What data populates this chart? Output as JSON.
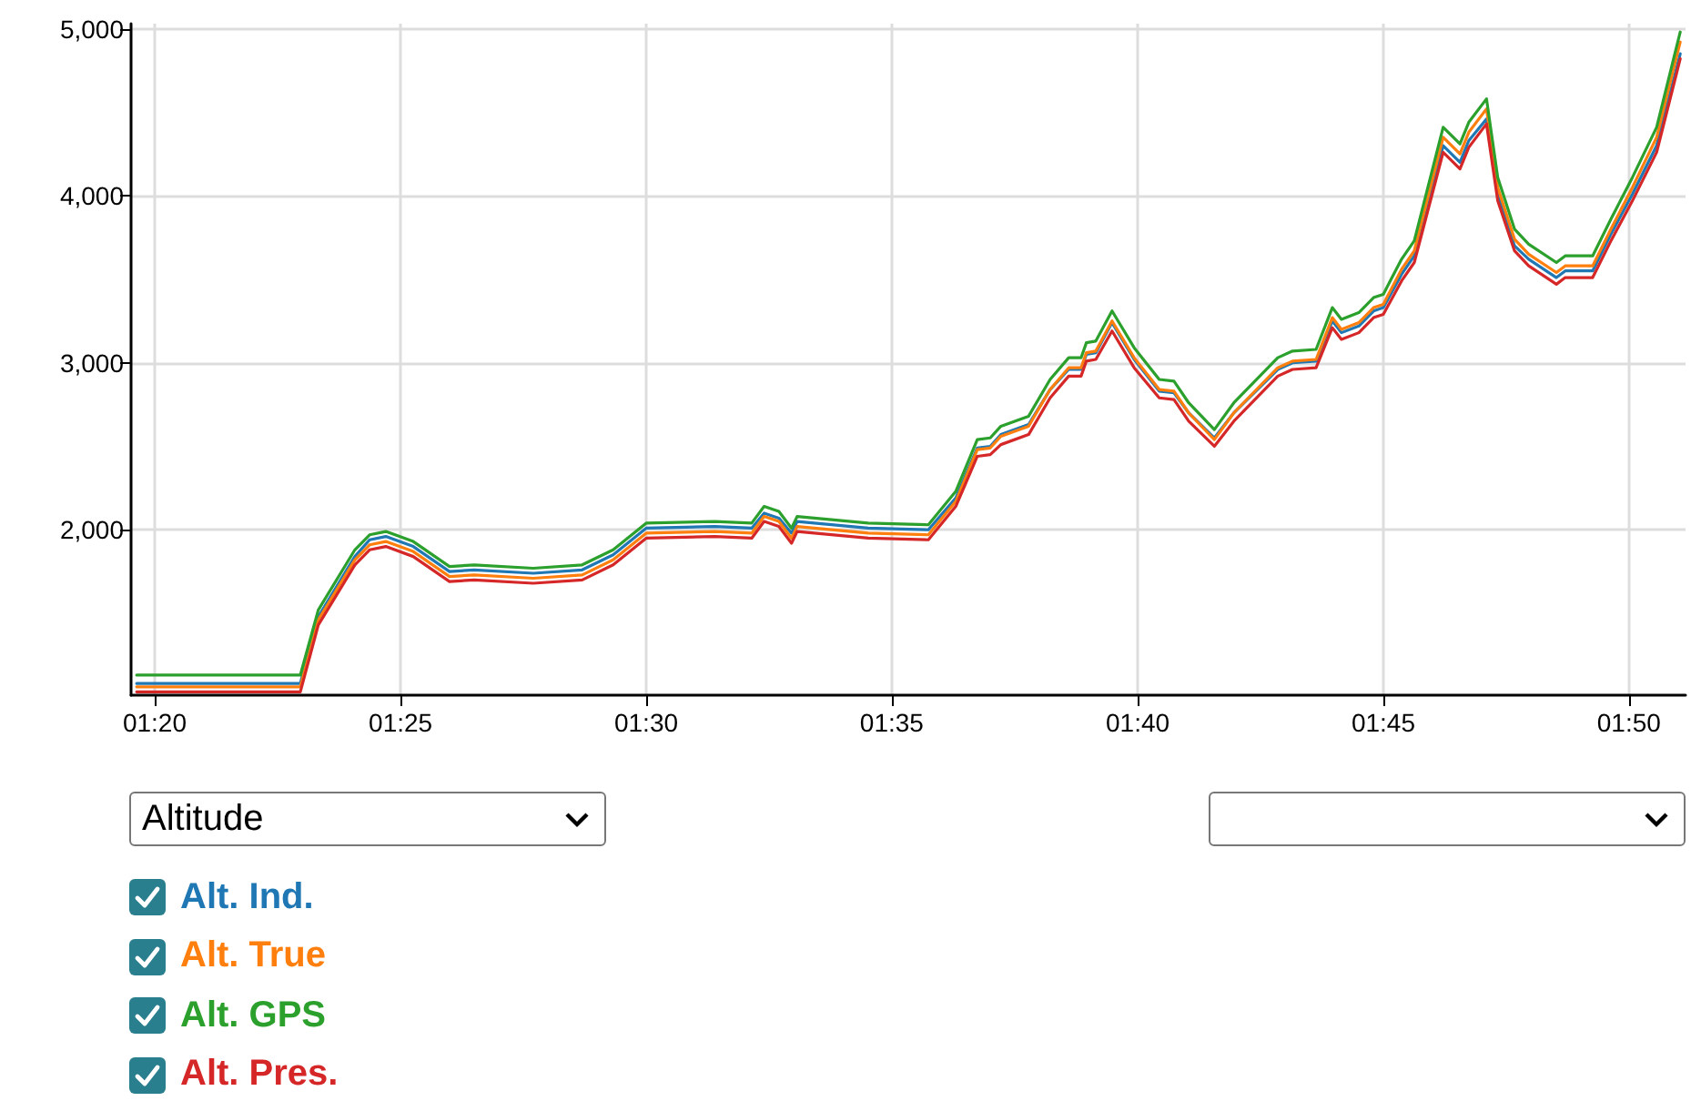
{
  "chart_data": {
    "type": "line",
    "annotations": [
      "Altitude"
    ],
    "x": [
      1.3272,
      1.3827,
      1.3888,
      1.4012,
      1.4062,
      1.4117,
      1.421,
      1.4333,
      1.4417,
      1.4617,
      1.4783,
      1.4888,
      1.5,
      1.5233,
      1.5358,
      1.54,
      1.545,
      1.5493,
      1.5512,
      1.5753,
      1.5957,
      1.605,
      1.6123,
      1.6167,
      1.6203,
      1.6297,
      1.637,
      1.6433,
      1.6475,
      1.6493,
      1.6525,
      1.658,
      1.6655,
      1.674,
      1.679,
      1.684,
      1.6927,
      1.6993,
      1.7142,
      1.7192,
      1.7272,
      1.7327,
      1.7358,
      1.7417,
      1.7467,
      1.75,
      1.7562,
      1.7605,
      1.7703,
      1.776,
      1.779,
      1.785,
      1.7888,
      1.7945,
      1.7993,
      1.8087,
      1.8117,
      1.821,
      1.8272,
      1.8345,
      1.8427,
      1.8507
    ],
    "series": [
      {
        "name": "Alt. Ind.",
        "color": "#1f77b4",
        "values": [
          1080,
          1080,
          1480,
          1840,
          1940,
          1960,
          1900,
          1750,
          1760,
          1740,
          1760,
          1850,
          2010,
          2020,
          2010,
          2100,
          2070,
          1980,
          2050,
          2010,
          2000,
          2190,
          2490,
          2500,
          2570,
          2630,
          2840,
          2960,
          2960,
          3050,
          3060,
          3240,
          3020,
          2830,
          2820,
          2700,
          2550,
          2700,
          2960,
          3000,
          3010,
          3250,
          3180,
          3220,
          3310,
          3330,
          3530,
          3640,
          4300,
          4200,
          4330,
          4460,
          4010,
          3700,
          3620,
          3510,
          3550,
          3550,
          3770,
          4010,
          4300,
          4850
        ]
      },
      {
        "name": "Alt. True",
        "color": "#ff7f0e",
        "values": [
          1060,
          1060,
          1460,
          1820,
          1910,
          1930,
          1870,
          1720,
          1730,
          1710,
          1730,
          1820,
          1980,
          1990,
          1980,
          2080,
          2050,
          1950,
          2020,
          1980,
          1970,
          2170,
          2480,
          2490,
          2560,
          2620,
          2840,
          2970,
          2970,
          3060,
          3070,
          3250,
          3030,
          2840,
          2830,
          2700,
          2540,
          2700,
          2970,
          3010,
          3020,
          3270,
          3200,
          3240,
          3330,
          3350,
          3560,
          3670,
          4350,
          4250,
          4380,
          4520,
          4050,
          3740,
          3650,
          3540,
          3580,
          3580,
          3800,
          4050,
          4350,
          4920
        ]
      },
      {
        "name": "Alt. GPS",
        "color": "#2ca02c",
        "values": [
          1130,
          1130,
          1520,
          1880,
          1970,
          1990,
          1930,
          1780,
          1790,
          1770,
          1790,
          1880,
          2040,
          2050,
          2040,
          2140,
          2110,
          2010,
          2080,
          2040,
          2030,
          2230,
          2540,
          2550,
          2620,
          2680,
          2900,
          3030,
          3030,
          3120,
          3130,
          3310,
          3090,
          2900,
          2890,
          2760,
          2600,
          2760,
          3030,
          3070,
          3080,
          3330,
          3260,
          3300,
          3390,
          3410,
          3620,
          3730,
          4410,
          4310,
          4440,
          4580,
          4110,
          3800,
          3710,
          3600,
          3640,
          3640,
          3860,
          4110,
          4410,
          4980
        ]
      },
      {
        "name": "Alt. Pres.",
        "color": "#d62728",
        "values": [
          1030,
          1030,
          1430,
          1790,
          1880,
          1900,
          1840,
          1690,
          1700,
          1680,
          1700,
          1790,
          1950,
          1960,
          1950,
          2050,
          2020,
          1920,
          1990,
          1950,
          1940,
          2140,
          2440,
          2450,
          2510,
          2570,
          2790,
          2920,
          2920,
          3010,
          3020,
          3190,
          2970,
          2790,
          2780,
          2650,
          2500,
          2650,
          2920,
          2960,
          2970,
          3210,
          3140,
          3180,
          3270,
          3290,
          3490,
          3600,
          4260,
          4160,
          4290,
          4430,
          3970,
          3670,
          3580,
          3470,
          3510,
          3510,
          3730,
          3970,
          4260,
          4820
        ]
      }
    ],
    "xlim": [
      1.3253,
      1.8525
    ],
    "xticks": [
      {
        "value": 1.3333,
        "label": "01:20"
      },
      {
        "value": 1.4167,
        "label": "01:25"
      },
      {
        "value": 1.5,
        "label": "01:30"
      },
      {
        "value": 1.5833,
        "label": "01:35"
      },
      {
        "value": 1.6667,
        "label": "01:40"
      },
      {
        "value": 1.75,
        "label": "01:45"
      },
      {
        "value": 1.8333,
        "label": "01:50"
      }
    ],
    "ylim": [
      1010,
      5030
    ],
    "yticks": [
      {
        "value": 2000,
        "label": "2,000"
      },
      {
        "value": 3000,
        "label": "3,000"
      },
      {
        "value": 4000,
        "label": "4,000"
      },
      {
        "value": 5000,
        "label": "5,000"
      }
    ],
    "grid": true,
    "legend": "bottom left",
    "marker": "none",
    "line_style": "solid"
  }
}
